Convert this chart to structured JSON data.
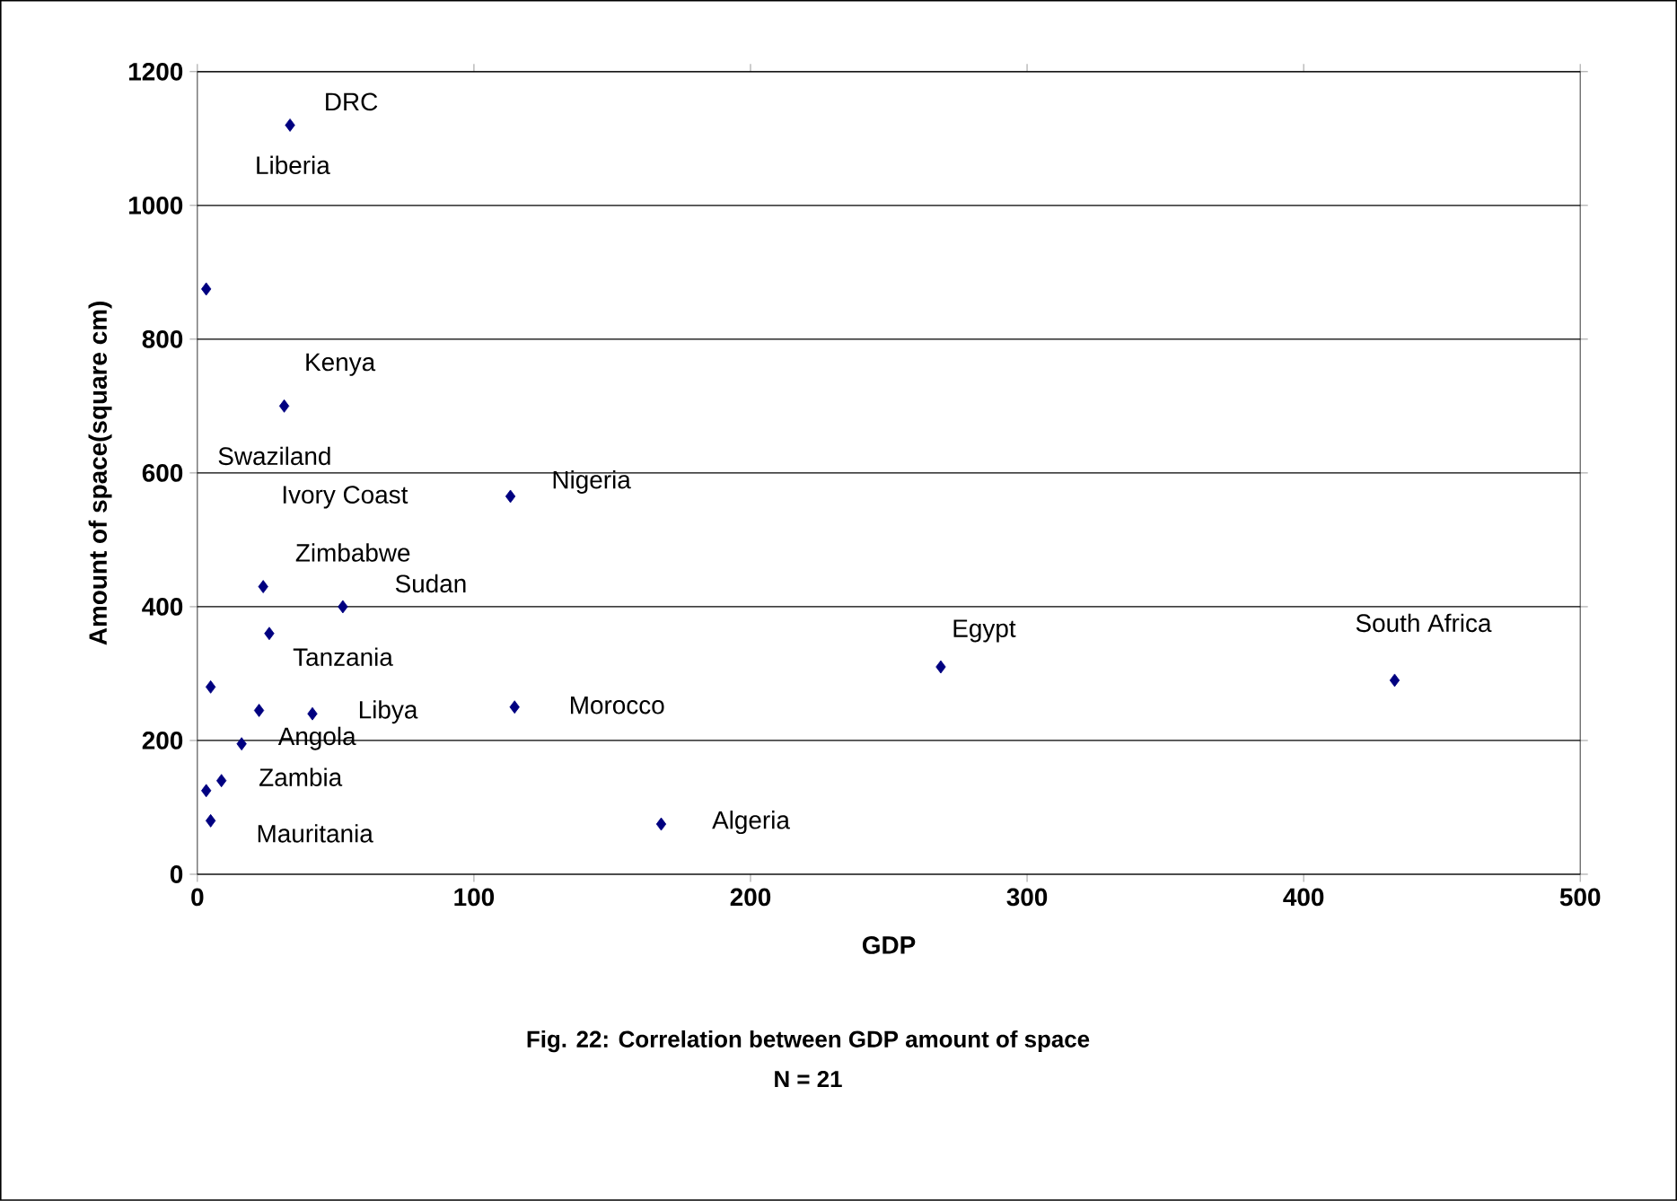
{
  "chart_data": {
    "type": "scatter",
    "xlabel": "GDP",
    "ylabel": "Amount of space(square cm)",
    "x": [
      33.5,
      3.2,
      31.4,
      113.2,
      23.8,
      52.6,
      26,
      4.8,
      22.3,
      41.6,
      114.7,
      16,
      8.7,
      3.2,
      4.8,
      167.7,
      268.8,
      432.9
    ],
    "values": [
      1120,
      875,
      700,
      565,
      430,
      400,
      360,
      280,
      245,
      240,
      250,
      195,
      140,
      125,
      80,
      75,
      310,
      290
    ],
    "color": "#000080",
    "marker": "diamond",
    "xlim": [
      0,
      500
    ],
    "ylim": [
      0,
      1200
    ],
    "xticks": [
      0,
      100,
      200,
      300,
      400,
      500
    ],
    "yticks": [
      0,
      200,
      400,
      600,
      800,
      1000,
      1200
    ],
    "grid": "y",
    "annotations": [
      {
        "text": "DRC",
        "x": 33.5,
        "y": 1120
      },
      "Liberia",
      {
        "text": "Kenya",
        "x": 31.4,
        "y": 700
      },
      "Swaziland",
      "Ivory Coast",
      {
        "text": "Nigeria",
        "x": 113.2,
        "y": 565
      },
      {
        "text": "Zimbabwe",
        "x": 23.8,
        "y": 430
      },
      {
        "text": "Sudan",
        "x": 52.6,
        "y": 400
      },
      {
        "text": "Tanzania",
        "x": 26,
        "y": 360
      },
      {
        "text": "Libya",
        "x": 41.6,
        "y": 240
      },
      {
        "text": "Morocco",
        "x": 114.7,
        "y": 250
      },
      {
        "text": "Angola",
        "x": 16,
        "y": 195
      },
      {
        "text": "Zambia",
        "x": 8.7,
        "y": 140
      },
      {
        "text": "Mauritania",
        "x": 4.8,
        "y": 80
      },
      {
        "text": "Algeria",
        "x": 167.7,
        "y": 75
      },
      {
        "text": "Egypt",
        "x": 268.8,
        "y": 310
      },
      {
        "text": "South Africa",
        "x": 432.9,
        "y": 290
      },
      "Fig. 22: Correlation between GDP amount of  space",
      "N = 21"
    ]
  }
}
